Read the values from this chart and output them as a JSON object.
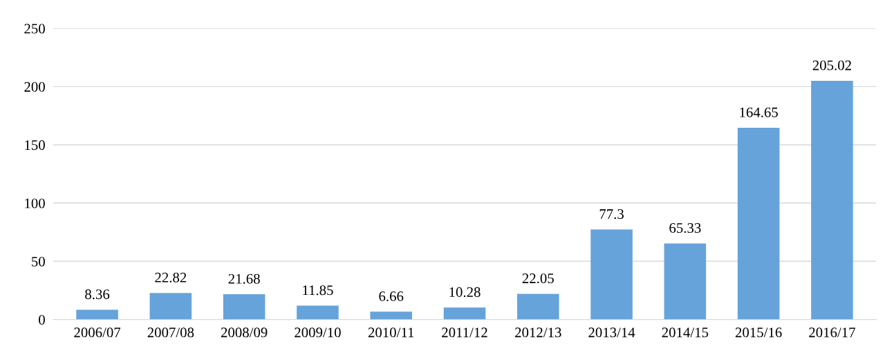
{
  "chart_data": {
    "type": "bar",
    "categories": [
      "2006/07",
      "2007/08",
      "2008/09",
      "2009/10",
      "2010/11",
      "2011/12",
      "2012/13",
      "2013/14",
      "2014/15",
      "2015/16",
      "2016/17"
    ],
    "values": [
      8.36,
      22.82,
      21.68,
      11.85,
      6.66,
      10.28,
      22.05,
      77.3,
      65.33,
      164.65,
      205.02
    ],
    "color": "#66a3da",
    "ylim": [
      0,
      250
    ],
    "yticks": [
      0,
      50,
      100,
      150,
      200,
      250
    ],
    "grid": "y",
    "data_labels": true
  }
}
